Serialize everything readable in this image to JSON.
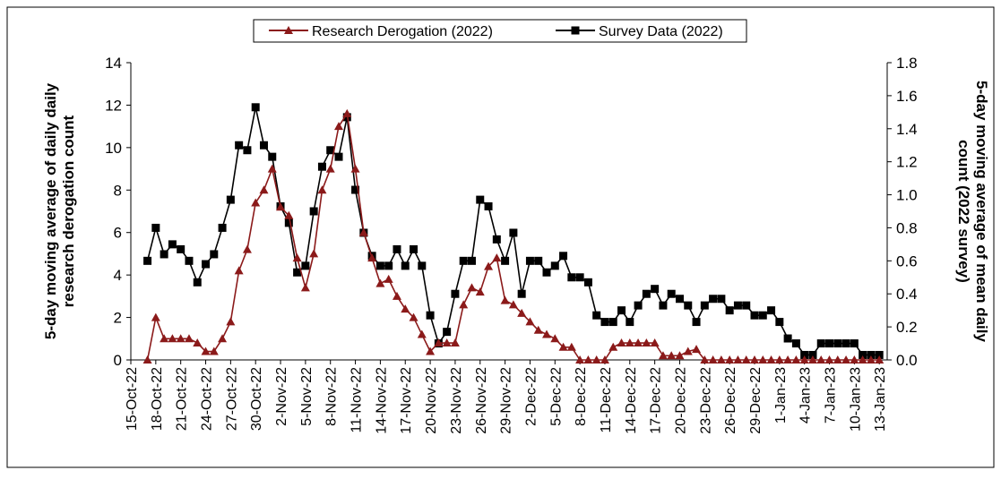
{
  "chart_data": {
    "type": "line",
    "ylabel": [
      "5-day moving average of daily daily",
      "research derogation count"
    ],
    "y2label": [
      "5-day moving average of mean daily",
      "count (2022 survey)"
    ],
    "categories": [
      "15-Oct-22",
      null,
      null,
      "18-Oct-22",
      null,
      null,
      "21-Oct-22",
      null,
      null,
      "24-Oct-22",
      null,
      null,
      "27-Oct-22",
      null,
      null,
      "30-Oct-22",
      null,
      null,
      "2-Nov-22",
      null,
      null,
      "5-Nov-22",
      null,
      null,
      "8-Nov-22",
      null,
      null,
      "11-Nov-22",
      null,
      null,
      "14-Nov-22",
      null,
      null,
      "17-Nov-22",
      null,
      null,
      "20-Nov-22",
      null,
      null,
      "23-Nov-22",
      null,
      null,
      "26-Nov-22",
      null,
      null,
      "29-Nov-22",
      null,
      null,
      "2-Dec-22",
      null,
      null,
      "5-Dec-22",
      null,
      null,
      "8-Dec-22",
      null,
      null,
      "11-Dec-22",
      null,
      null,
      "14-Dec-22",
      null,
      null,
      "17-Dec-22",
      null,
      null,
      "20-Dec-22",
      null,
      null,
      "23-Dec-22",
      null,
      null,
      "26-Dec-22",
      null,
      null,
      "29-Dec-22",
      null,
      null,
      "1-Jan-23",
      null,
      null,
      "4-Jan-23",
      null,
      null,
      "7-Jan-23",
      null,
      null,
      "10-Jan-23",
      null,
      null,
      "13-Jan-23"
    ],
    "ylim": [
      0,
      14
    ],
    "yticks": [
      0,
      2,
      4,
      6,
      8,
      10,
      12,
      14
    ],
    "y2lim": [
      0,
      1.8
    ],
    "y2ticks": [
      {
        "value": 0,
        "label": "0.0"
      },
      0.2,
      0.4,
      0.6,
      0.8,
      {
        "value": 1,
        "label": "1.0"
      },
      1.2,
      1.4,
      1.6,
      1.8
    ],
    "legend": "top",
    "series": [
      {
        "name": "Research Derogation (2022)",
        "color": "#8b1a1a",
        "marker": "triangle",
        "values": [
          null,
          null,
          0,
          2,
          1,
          1,
          1,
          1,
          0.8,
          0.4,
          0.4,
          1,
          1.8,
          4.2,
          5.2,
          7.4,
          8,
          9,
          7.2,
          6.8,
          4.8,
          3.4,
          5,
          8,
          9,
          11,
          11.6,
          9,
          6,
          4.8,
          3.6,
          3.8,
          3,
          2.4,
          2,
          1.2,
          0.4,
          0.8,
          0.8,
          0.8,
          2.6,
          3.4,
          3.2,
          4.4,
          4.8,
          2.8,
          2.6,
          2.2,
          1.8,
          1.4,
          1.2,
          1,
          0.6,
          0.6,
          0,
          0,
          0,
          0,
          0.6,
          0.8,
          0.8,
          0.8,
          0.8,
          0.8,
          0.2,
          0.2,
          0.2,
          0.4,
          0.5,
          0,
          0,
          0,
          0,
          0,
          0,
          0,
          0,
          0,
          0,
          0,
          0,
          0,
          0,
          0,
          0,
          0,
          0,
          0,
          0,
          0,
          0
        ]
      },
      {
        "name": "Survey Data (2022)",
        "color": "#000000",
        "marker": "square",
        "axis": "y2",
        "values": [
          null,
          null,
          0.6,
          0.8,
          0.64,
          0.7,
          0.67,
          0.6,
          0.47,
          0.58,
          0.64,
          0.8,
          0.97,
          1.3,
          1.27,
          1.53,
          1.3,
          1.23,
          0.93,
          0.83,
          0.53,
          0.57,
          0.9,
          1.17,
          1.27,
          1.23,
          1.47,
          1.03,
          0.77,
          0.63,
          0.57,
          0.57,
          0.67,
          0.57,
          0.67,
          0.57,
          0.27,
          0.1,
          0.17,
          0.4,
          0.6,
          0.6,
          0.97,
          0.93,
          0.73,
          0.6,
          0.77,
          0.4,
          0.6,
          0.6,
          0.53,
          0.57,
          0.63,
          0.5,
          0.5,
          0.47,
          0.27,
          0.23,
          0.23,
          0.3,
          0.23,
          0.33,
          0.4,
          0.43,
          0.33,
          0.4,
          0.37,
          0.33,
          0.23,
          0.33,
          0.37,
          0.37,
          0.3,
          0.33,
          0.33,
          0.27,
          0.27,
          0.3,
          0.23,
          0.13,
          0.1,
          0.03,
          0.03,
          0.1,
          0.1,
          0.1,
          0.1,
          0.1,
          0.03,
          0.03,
          0.03
        ]
      }
    ]
  }
}
